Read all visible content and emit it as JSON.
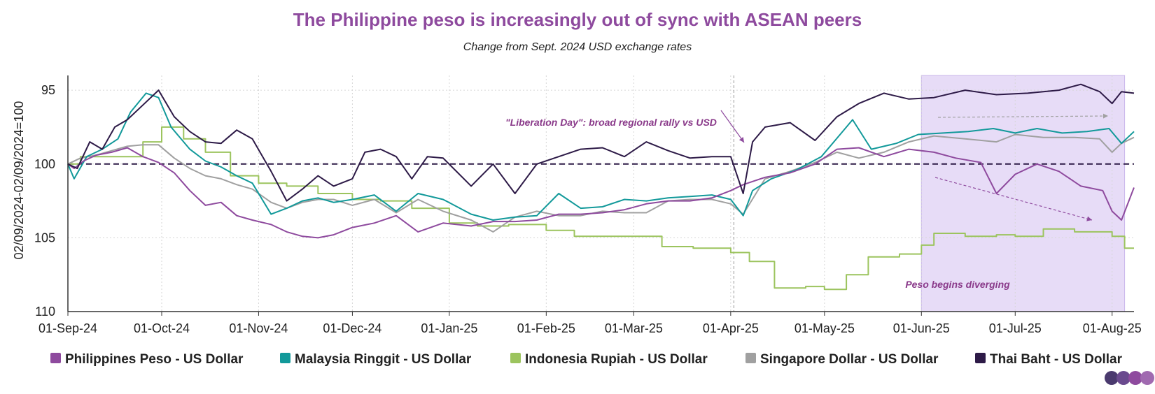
{
  "chart_data": {
    "type": "line",
    "title": "The Philippine peso is increasingly out of sync with ASEAN peers",
    "subtitle": "Change from Sept. 2024 USD exchange rates",
    "ylabel": "02/09/2024-02/09/2024=100",
    "xlabel": "",
    "y_inverted": true,
    "ylim": [
      110,
      94
    ],
    "xlim": [
      "2024-09-01",
      "2025-08-08"
    ],
    "yticks": [
      95,
      100,
      105,
      110
    ],
    "xticks": [
      "01-Sep-24",
      "01-Oct-24",
      "01-Nov-24",
      "01-Dec-24",
      "01-Jan-25",
      "01-Feb-25",
      "01-Mar-25",
      "01-Apr-25",
      "01-May-25",
      "01-Jun-25",
      "01-Jul-25",
      "01-Aug-25"
    ],
    "xtick_dates": [
      "2024-09-01",
      "2024-10-01",
      "2024-11-01",
      "2024-12-01",
      "2025-01-01",
      "2025-02-01",
      "2025-03-01",
      "2025-04-01",
      "2025-05-01",
      "2025-06-01",
      "2025-07-01",
      "2025-08-01"
    ],
    "grid": true,
    "reference_line": {
      "y": 100,
      "style": "dashed"
    },
    "event_line": {
      "x": "2025-04-02",
      "style": "dashed"
    },
    "highlight_region": {
      "x_start": "2025-06-01",
      "x_end": "2025-08-05",
      "color": "#e7dcf7"
    },
    "legend_position": "bottom",
    "annotations": [
      {
        "id": "liberation",
        "text": "\"Liberation Day\": broad regional rally vs USD",
        "color": "#8a3a8a"
      },
      {
        "id": "diverging",
        "text": "Peso begins diverging",
        "color": "#8a3a8a"
      }
    ],
    "series": [
      {
        "name": "Philippines Peso - US Dollar",
        "color": "#8e4a9e",
        "step": false,
        "x": [
          "2024-09-01",
          "2024-09-03",
          "2024-09-06",
          "2024-09-10",
          "2024-09-15",
          "2024-09-20",
          "2024-09-25",
          "2024-09-30",
          "2024-10-05",
          "2024-10-10",
          "2024-10-15",
          "2024-10-20",
          "2024-10-25",
          "2024-10-30",
          "2024-11-05",
          "2024-11-10",
          "2024-11-15",
          "2024-11-20",
          "2024-11-25",
          "2024-12-01",
          "2024-12-08",
          "2024-12-15",
          "2024-12-22",
          "2024-12-30",
          "2025-01-08",
          "2025-01-15",
          "2025-01-22",
          "2025-01-29",
          "2025-02-05",
          "2025-02-12",
          "2025-02-19",
          "2025-02-26",
          "2025-03-05",
          "2025-03-12",
          "2025-03-19",
          "2025-03-26",
          "2025-04-01",
          "2025-04-05",
          "2025-04-12",
          "2025-04-20",
          "2025-04-28",
          "2025-05-05",
          "2025-05-12",
          "2025-05-20",
          "2025-05-28",
          "2025-06-05",
          "2025-06-12",
          "2025-06-20",
          "2025-06-25",
          "2025-07-01",
          "2025-07-08",
          "2025-07-15",
          "2025-07-22",
          "2025-07-29",
          "2025-08-01",
          "2025-08-04",
          "2025-08-08"
        ],
        "values": [
          100.0,
          100.3,
          99.8,
          99.4,
          99.2,
          98.9,
          99.5,
          99.9,
          100.6,
          101.8,
          102.8,
          102.6,
          103.5,
          103.8,
          104.1,
          104.6,
          104.9,
          105.0,
          104.8,
          104.3,
          104.0,
          103.5,
          104.6,
          104.0,
          104.2,
          103.9,
          103.9,
          103.8,
          103.4,
          103.4,
          103.3,
          103.1,
          102.7,
          102.5,
          102.5,
          102.3,
          101.8,
          101.4,
          100.9,
          100.6,
          100.0,
          99.0,
          98.9,
          99.5,
          99.0,
          99.2,
          99.6,
          99.9,
          102.0,
          100.7,
          100.0,
          100.5,
          101.5,
          101.8,
          103.2,
          103.8,
          101.6
        ]
      },
      {
        "name": "Malaysia Ringgit - US Dollar",
        "color": "#12999a",
        "step": false,
        "x": [
          "2024-09-01",
          "2024-09-03",
          "2024-09-07",
          "2024-09-12",
          "2024-09-17",
          "2024-09-21",
          "2024-09-26",
          "2024-09-30",
          "2024-10-04",
          "2024-10-10",
          "2024-10-15",
          "2024-10-20",
          "2024-10-25",
          "2024-10-30",
          "2024-11-05",
          "2024-11-10",
          "2024-11-15",
          "2024-11-20",
          "2024-11-25",
          "2024-12-01",
          "2024-12-08",
          "2024-12-15",
          "2024-12-22",
          "2024-12-30",
          "2025-01-08",
          "2025-01-15",
          "2025-01-22",
          "2025-01-29",
          "2025-02-05",
          "2025-02-12",
          "2025-02-19",
          "2025-02-26",
          "2025-03-05",
          "2025-03-12",
          "2025-03-19",
          "2025-03-26",
          "2025-04-01",
          "2025-04-05",
          "2025-04-08",
          "2025-04-14",
          "2025-04-22",
          "2025-04-30",
          "2025-05-06",
          "2025-05-10",
          "2025-05-16",
          "2025-05-24",
          "2025-05-31",
          "2025-06-08",
          "2025-06-16",
          "2025-06-24",
          "2025-07-01",
          "2025-07-08",
          "2025-07-16",
          "2025-07-24",
          "2025-07-31",
          "2025-08-04",
          "2025-08-08"
        ],
        "values": [
          100.0,
          101.0,
          99.5,
          99.0,
          98.3,
          96.5,
          95.2,
          95.5,
          97.5,
          99.0,
          99.8,
          100.2,
          100.8,
          101.3,
          103.4,
          103.0,
          102.5,
          102.3,
          102.6,
          102.4,
          102.1,
          103.2,
          102.0,
          102.4,
          103.4,
          103.8,
          103.6,
          103.5,
          102.0,
          103.0,
          102.9,
          102.4,
          102.5,
          102.3,
          102.2,
          102.1,
          102.4,
          103.5,
          101.8,
          101.0,
          100.4,
          99.5,
          98.0,
          97.0,
          99.0,
          98.6,
          98.0,
          97.9,
          97.8,
          97.6,
          97.9,
          97.6,
          97.9,
          97.8,
          97.6,
          98.6,
          97.8
        ]
      },
      {
        "name": "Indonesia Rupiah - US Dollar",
        "color": "#9cc45e",
        "step": true,
        "x": [
          "2024-09-01",
          "2024-09-05",
          "2024-09-25",
          "2024-10-01",
          "2024-10-08",
          "2024-10-15",
          "2024-10-23",
          "2024-11-01",
          "2024-11-10",
          "2024-11-20",
          "2024-12-01",
          "2024-12-10",
          "2024-12-20",
          "2025-01-01",
          "2025-01-10",
          "2025-01-20",
          "2025-02-01",
          "2025-02-10",
          "2025-02-20",
          "2025-03-01",
          "2025-03-10",
          "2025-03-20",
          "2025-04-01",
          "2025-04-07",
          "2025-04-15",
          "2025-04-25",
          "2025-05-01",
          "2025-05-08",
          "2025-05-15",
          "2025-05-25",
          "2025-06-01",
          "2025-06-05",
          "2025-06-15",
          "2025-06-25",
          "2025-07-01",
          "2025-07-10",
          "2025-07-20",
          "2025-08-01",
          "2025-08-05",
          "2025-08-08"
        ],
        "values": [
          100.0,
          99.5,
          98.5,
          97.5,
          98.3,
          99.2,
          100.8,
          101.3,
          101.5,
          102.0,
          102.4,
          102.5,
          103.0,
          104.0,
          104.2,
          104.1,
          104.5,
          104.9,
          104.9,
          104.9,
          105.6,
          105.7,
          106.0,
          106.6,
          108.4,
          108.3,
          108.5,
          107.5,
          106.3,
          106.1,
          105.5,
          104.7,
          104.9,
          104.8,
          104.9,
          104.4,
          104.6,
          104.9,
          105.7,
          105.7
        ]
      },
      {
        "name": "Singapore Dollar - US Dollar",
        "color": "#a0a0a0",
        "step": false,
        "x": [
          "2024-09-01",
          "2024-09-05",
          "2024-09-10",
          "2024-09-15",
          "2024-09-20",
          "2024-09-25",
          "2024-09-30",
          "2024-10-05",
          "2024-10-10",
          "2024-10-15",
          "2024-10-20",
          "2024-10-25",
          "2024-10-30",
          "2024-11-05",
          "2024-11-10",
          "2024-11-15",
          "2024-11-20",
          "2024-11-25",
          "2024-12-01",
          "2024-12-08",
          "2024-12-15",
          "2024-12-22",
          "2024-12-30",
          "2025-01-08",
          "2025-01-15",
          "2025-01-22",
          "2025-01-29",
          "2025-02-05",
          "2025-02-12",
          "2025-02-19",
          "2025-02-26",
          "2025-03-05",
          "2025-03-12",
          "2025-03-19",
          "2025-03-26",
          "2025-04-01",
          "2025-04-05",
          "2025-04-12",
          "2025-04-20",
          "2025-04-28",
          "2025-05-05",
          "2025-05-12",
          "2025-05-20",
          "2025-05-28",
          "2025-06-05",
          "2025-06-15",
          "2025-06-25",
          "2025-07-01",
          "2025-07-10",
          "2025-07-20",
          "2025-07-28",
          "2025-08-01",
          "2025-08-04",
          "2025-08-08"
        ],
        "values": [
          100.0,
          99.6,
          99.4,
          99.1,
          98.8,
          98.7,
          98.7,
          99.6,
          100.3,
          100.8,
          101.0,
          101.4,
          101.7,
          102.6,
          103.0,
          102.6,
          102.4,
          102.4,
          102.8,
          102.4,
          103.3,
          102.4,
          103.2,
          103.8,
          104.6,
          103.6,
          103.2,
          103.5,
          103.5,
          103.2,
          103.3,
          103.3,
          102.5,
          102.4,
          102.4,
          102.7,
          103.4,
          101.0,
          100.5,
          99.9,
          99.2,
          99.6,
          99.2,
          98.5,
          98.1,
          98.3,
          98.5,
          98.0,
          98.2,
          98.2,
          98.3,
          99.2,
          98.6,
          98.2
        ]
      },
      {
        "name": "Thai Baht - US Dollar",
        "color": "#2d1a47",
        "step": false,
        "x": [
          "2024-09-01",
          "2024-09-04",
          "2024-09-08",
          "2024-09-12",
          "2024-09-16",
          "2024-09-20",
          "2024-09-25",
          "2024-09-30",
          "2024-10-05",
          "2024-10-10",
          "2024-10-15",
          "2024-10-20",
          "2024-10-25",
          "2024-10-30",
          "2024-11-05",
          "2024-11-10",
          "2024-11-15",
          "2024-11-20",
          "2024-11-25",
          "2024-12-01",
          "2024-12-05",
          "2024-12-10",
          "2024-12-15",
          "2024-12-20",
          "2024-12-25",
          "2024-12-30",
          "2025-01-08",
          "2025-01-15",
          "2025-01-22",
          "2025-01-29",
          "2025-02-05",
          "2025-02-12",
          "2025-02-19",
          "2025-02-26",
          "2025-03-05",
          "2025-03-12",
          "2025-03-19",
          "2025-03-26",
          "2025-04-01",
          "2025-04-05",
          "2025-04-08",
          "2025-04-12",
          "2025-04-20",
          "2025-04-28",
          "2025-05-05",
          "2025-05-12",
          "2025-05-20",
          "2025-05-28",
          "2025-06-05",
          "2025-06-15",
          "2025-06-25",
          "2025-07-05",
          "2025-07-15",
          "2025-07-22",
          "2025-07-28",
          "2025-08-01",
          "2025-08-04",
          "2025-08-08"
        ],
        "values": [
          100.0,
          100.3,
          98.5,
          99.0,
          97.5,
          97.0,
          96.0,
          95.0,
          96.8,
          97.8,
          98.5,
          98.6,
          97.7,
          98.3,
          100.5,
          102.5,
          101.7,
          100.8,
          101.5,
          101.0,
          99.2,
          99.0,
          99.5,
          101.0,
          99.5,
          99.6,
          101.5,
          100.0,
          102.0,
          100.0,
          99.5,
          99.0,
          98.9,
          99.5,
          98.5,
          99.1,
          99.6,
          99.5,
          99.5,
          102.0,
          98.5,
          97.5,
          97.2,
          98.4,
          96.8,
          95.9,
          95.2,
          95.6,
          95.5,
          95.0,
          95.3,
          95.2,
          95.0,
          94.6,
          95.1,
          95.9,
          95.1,
          95.2
        ]
      }
    ]
  }
}
